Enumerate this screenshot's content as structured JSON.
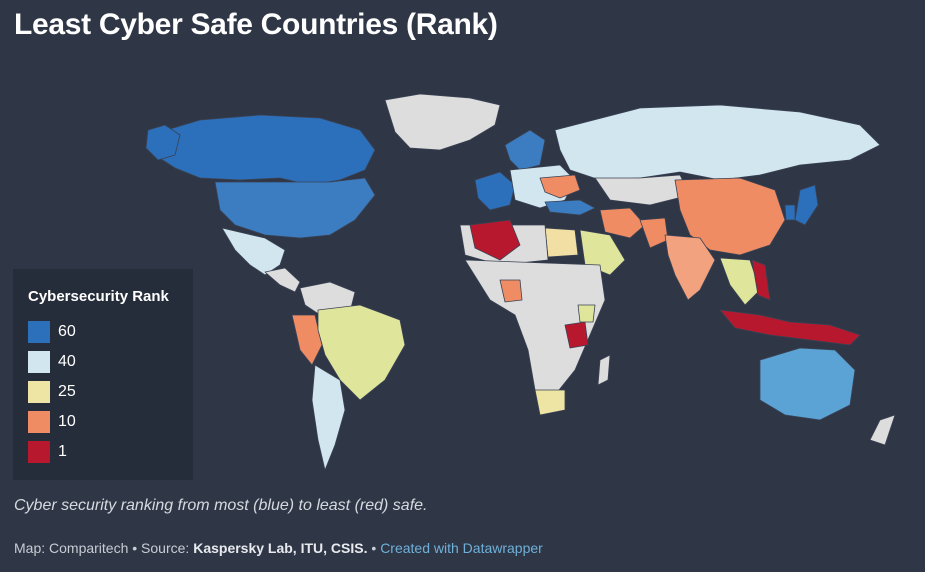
{
  "title": "Least Cyber Safe Countries (Rank)",
  "legend": {
    "title": "Cybersecurity Rank",
    "items": [
      {
        "label": "60",
        "color": "#2c6fba"
      },
      {
        "label": "40",
        "color": "#d2e6ef"
      },
      {
        "label": "25",
        "color": "#eee4a3"
      },
      {
        "label": "10",
        "color": "#ef8c64"
      },
      {
        "label": "1",
        "color": "#b8182e"
      }
    ]
  },
  "caption": "Cyber security ranking from most (blue) to least (red) safe.",
  "footer": {
    "map_prefix": "Map: Comparitech • Source: ",
    "source": "Kaspersky Lab, ITU, CSIS.",
    "separator": " • ",
    "created_with": "Created with Datawrapper"
  },
  "colors": {
    "background": "#2f3747",
    "no_data": "#dddddd",
    "border": "#3a4254"
  }
}
